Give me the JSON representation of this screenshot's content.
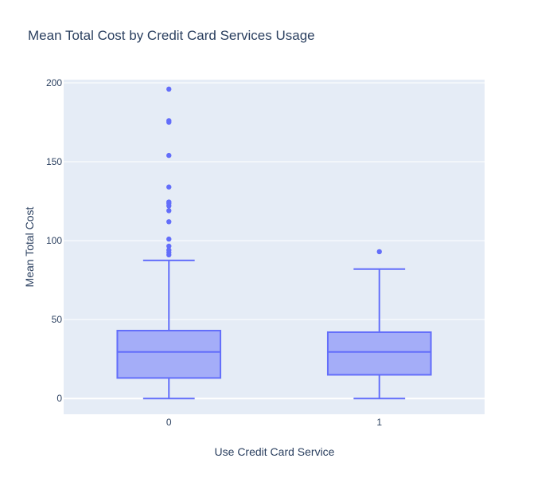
{
  "chart_data": {
    "type": "box",
    "title": "Mean Total Cost by Credit Card Services Usage",
    "xlabel": "Use Credit Card Service",
    "ylabel": "Mean Total Cost",
    "categories": [
      "0",
      "1"
    ],
    "ylim": [
      -10,
      202
    ],
    "yticks": [
      0,
      50,
      100,
      150,
      200
    ],
    "grid": true,
    "legend": "none",
    "boxes": [
      {
        "category": "0",
        "min": 0,
        "q1": 13,
        "median": 29.5,
        "q3": 43,
        "max": 87.5,
        "outliers": [
          91,
          92.5,
          94,
          96.5,
          101,
          112,
          119,
          122,
          123.5,
          124.5,
          134,
          154,
          175,
          176,
          196
        ]
      },
      {
        "category": "1",
        "min": 0,
        "q1": 15,
        "median": 29.5,
        "q3": 42,
        "max": 82,
        "outliers": [
          93
        ]
      }
    ],
    "colors": {
      "box_line": "#636efa",
      "box_fill": "#636efa",
      "plot_bg": "#e5ecf6",
      "grid": "#ffffff",
      "text": "#2a3f5f"
    }
  }
}
